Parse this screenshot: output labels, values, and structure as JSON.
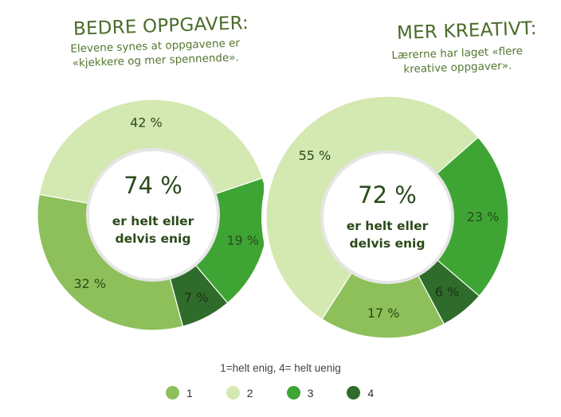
{
  "colors": {
    "cat1": "#8dc05a",
    "cat2": "#d4e8b2",
    "cat3": "#3ea534",
    "cat4": "#2f6b2a",
    "text_dark": "#2a4a1a",
    "title": "#4a6b2a"
  },
  "chart_data": [
    {
      "type": "pie",
      "title": "BEDRE OPPGAVER:",
      "subtitle": "Elevene synes at oppgavene er «kjekkere og mer spennende».",
      "center_value": "74 %",
      "center_label": "er helt eller delvis enig",
      "slices": [
        {
          "category": "1",
          "value": 32,
          "label": "32 %"
        },
        {
          "category": "2",
          "value": 42,
          "label": "42 %"
        },
        {
          "category": "3",
          "value": 19,
          "label": "19 %"
        },
        {
          "category": "4",
          "value": 7,
          "label": "7 %"
        }
      ]
    },
    {
      "type": "pie",
      "title": "MER KREATIVT:",
      "subtitle": "Lærerne har laget «flere kreative oppgaver».",
      "center_value": "72 %",
      "center_label": "er helt eller delvis enig",
      "slices": [
        {
          "category": "1",
          "value": 17,
          "label": "17 %"
        },
        {
          "category": "2",
          "value": 55,
          "label": "55 %"
        },
        {
          "category": "3",
          "value": 23,
          "label": "23 %"
        },
        {
          "category": "4",
          "value": 6,
          "label": "6 %"
        }
      ]
    }
  ],
  "legend": {
    "caption": "1=helt enig, 4= helt uenig",
    "items": [
      {
        "label": "1",
        "color": "#8dc05a"
      },
      {
        "label": "2",
        "color": "#d4e8b2"
      },
      {
        "label": "3",
        "color": "#3ea534"
      },
      {
        "label": "4",
        "color": "#2f6b2a"
      }
    ]
  }
}
